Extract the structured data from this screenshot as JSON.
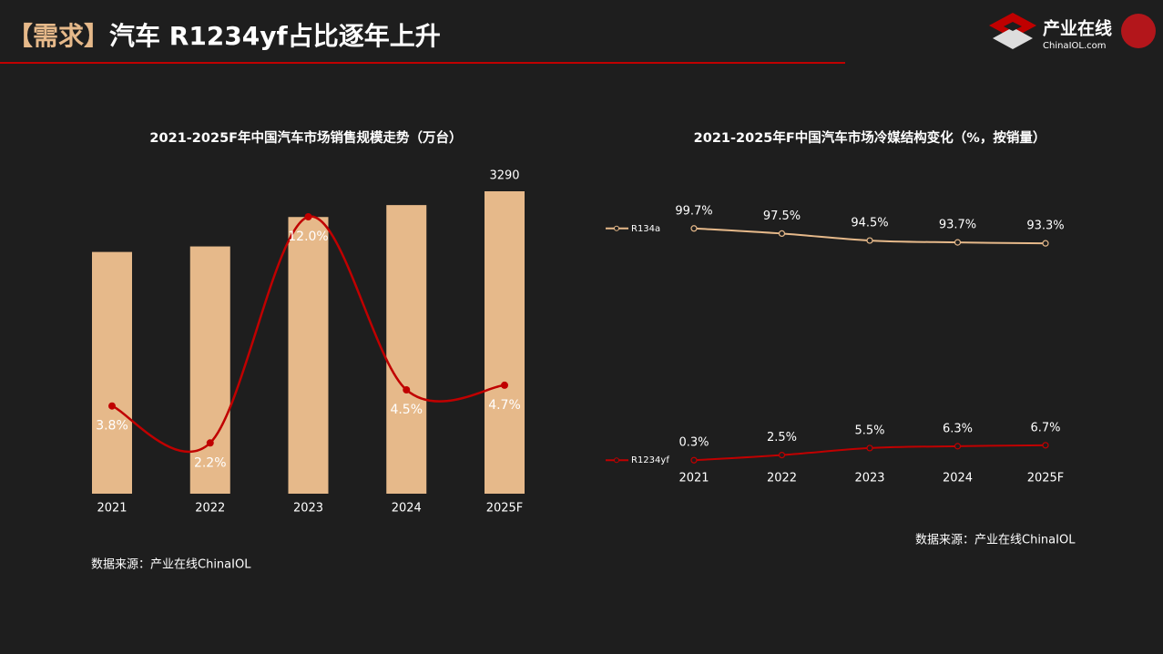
{
  "header": {
    "title_prefix": "【需求】",
    "title": "汽车 R1234yf占比逐年上升",
    "logo_name": "产业在线",
    "logo_url": "ChinaIOL.com"
  },
  "chart_data": [
    {
      "type": "combo",
      "title": "2021-2025F年中国汽车市场销售规模走势（万台）",
      "categories": [
        "2021",
        "2022",
        "2023",
        "2024",
        "2025F"
      ],
      "series": [
        {
          "type": "bar",
          "color": "#e6b98a",
          "values": [
            2630,
            2690,
            3010,
            3140,
            3290
          ],
          "value_labels": [
            null,
            null,
            null,
            null,
            "3290"
          ]
        },
        {
          "type": "line",
          "axis": "y2",
          "color": "#c00000",
          "values": [
            3.8,
            2.2,
            12.0,
            4.5,
            4.7
          ],
          "value_labels": [
            "3.8%",
            "2.2%",
            "12.0%",
            "4.5%",
            "4.7%"
          ]
        }
      ],
      "source": "数据来源：产业在线ChinaIOL"
    },
    {
      "type": "line",
      "title": "2021-2025年F中国汽车市场冷媒结构变化（%，按销量）",
      "categories": [
        "2021",
        "2022",
        "2023",
        "2024",
        "2025F"
      ],
      "ylim": [
        0,
        100
      ],
      "legend": "left",
      "series": [
        {
          "name": "R134a",
          "color": "#e6b98a",
          "values": [
            99.7,
            97.5,
            94.5,
            93.7,
            93.3
          ],
          "value_labels": [
            "99.7%",
            "97.5%",
            "94.5%",
            "93.7%",
            "93.3%"
          ]
        },
        {
          "name": "R1234yf",
          "color": "#c00000",
          "values": [
            0.3,
            2.5,
            5.5,
            6.3,
            6.7
          ],
          "value_labels": [
            "0.3%",
            "2.5%",
            "5.5%",
            "6.3%",
            "6.7%"
          ]
        }
      ],
      "source": "数据来源：产业在线ChinaIOL"
    }
  ]
}
